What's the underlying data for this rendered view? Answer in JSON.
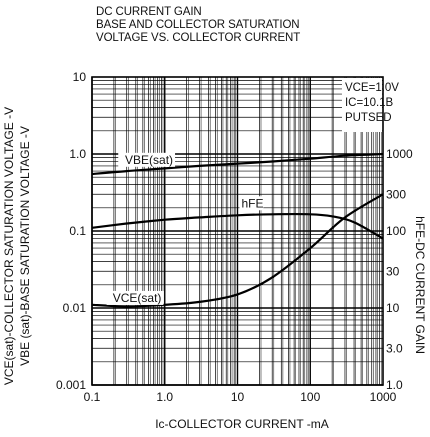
{
  "chart_data": {
    "type": "line",
    "title_lines": [
      "DC CURRENT GAIN",
      "BASE AND COLLECTOR SATURATION",
      "VOLTAGE VS. COLLECTOR CURRENT"
    ],
    "xlabel": "Ic-COLLECTOR CURRENT -mA",
    "ylabel_left_lines": [
      "VCE(sat)-COLLECTOR SATURATION VOLTAGE -V",
      "VBE (sat)-BASE SATURATION VOLTAGE -V"
    ],
    "ylabel_right": "hFE-DC CURRENT GAIN",
    "x_scale": "log",
    "xlim": [
      0.1,
      1000
    ],
    "x_ticks": [
      "0.1",
      "1.0",
      "10",
      "100",
      "1000"
    ],
    "y_left_scale": "log",
    "y_left_lim": [
      0.001,
      10
    ],
    "y_left_ticks": [
      "0.001",
      "0.01",
      "0.1",
      "1.0",
      "10"
    ],
    "y_right_scale": "log",
    "y_right_lim": [
      1,
      10000
    ],
    "y_right_ticks": [
      "1.0",
      "3.0",
      "10",
      "30",
      "100",
      "300",
      "1000"
    ],
    "grid": true,
    "annotation_lines": [
      "VCE=1.0V",
      "IC=10.1B",
      "PUTSED"
    ],
    "series": [
      {
        "name": "VBE(sat)",
        "axis": "left",
        "x": [
          0.1,
          0.3,
          1,
          3,
          10,
          30,
          100,
          300,
          1000
        ],
        "y": [
          0.55,
          0.6,
          0.65,
          0.7,
          0.75,
          0.8,
          0.87,
          0.95,
          1.0
        ]
      },
      {
        "name": "hFE",
        "axis": "right",
        "x": [
          0.1,
          0.3,
          1,
          3,
          10,
          30,
          100,
          200,
          400,
          1000
        ],
        "y": [
          110,
          125,
          140,
          150,
          160,
          165,
          165,
          155,
          130,
          80
        ]
      },
      {
        "name": "VCE(sat)",
        "axis": "left",
        "x": [
          0.1,
          0.3,
          1,
          3,
          10,
          30,
          100,
          300,
          1000
        ],
        "y": [
          0.011,
          0.0105,
          0.011,
          0.012,
          0.015,
          0.025,
          0.06,
          0.15,
          0.3
        ]
      }
    ]
  }
}
